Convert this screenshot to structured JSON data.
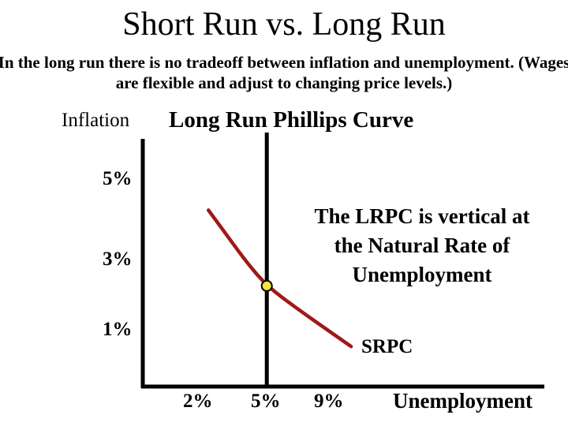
{
  "title": "Short Run vs. Long Run",
  "subtitle_lines": [
    "In the long run there is no tradeoff between inflation and unemployment. (Wages",
    "are flexible and adjust to changing price levels.)"
  ],
  "annotation_lines": [
    "The LRPC is vertical at",
    "the Natural Rate of",
    "Unemployment"
  ],
  "colors": {
    "srpc_curve": "#a01818",
    "point_fill": "#f2e63c",
    "axis": "#000000"
  },
  "chart_data": {
    "type": "line",
    "title": "",
    "xlabel": "Unemployment",
    "ylabel": "Inflation",
    "xticks": [
      "2%",
      "5%",
      "9%"
    ],
    "yticks": [
      "5%",
      "3%",
      "1%"
    ],
    "grid": false,
    "legend": "none",
    "series": [
      {
        "name": "SRPC",
        "points": [
          [
            2.3,
            4.2
          ],
          [
            3.2,
            3.5
          ],
          [
            4.1,
            2.8
          ],
          [
            5.0,
            2.2
          ],
          [
            6.4,
            1.6
          ],
          [
            7.9,
            1.0
          ],
          [
            8.9,
            0.6
          ]
        ]
      }
    ],
    "vertical_line": {
      "name": "Long Run Phillips Curve",
      "x": 5
    },
    "point": {
      "x": 5,
      "y": 2.2
    }
  }
}
